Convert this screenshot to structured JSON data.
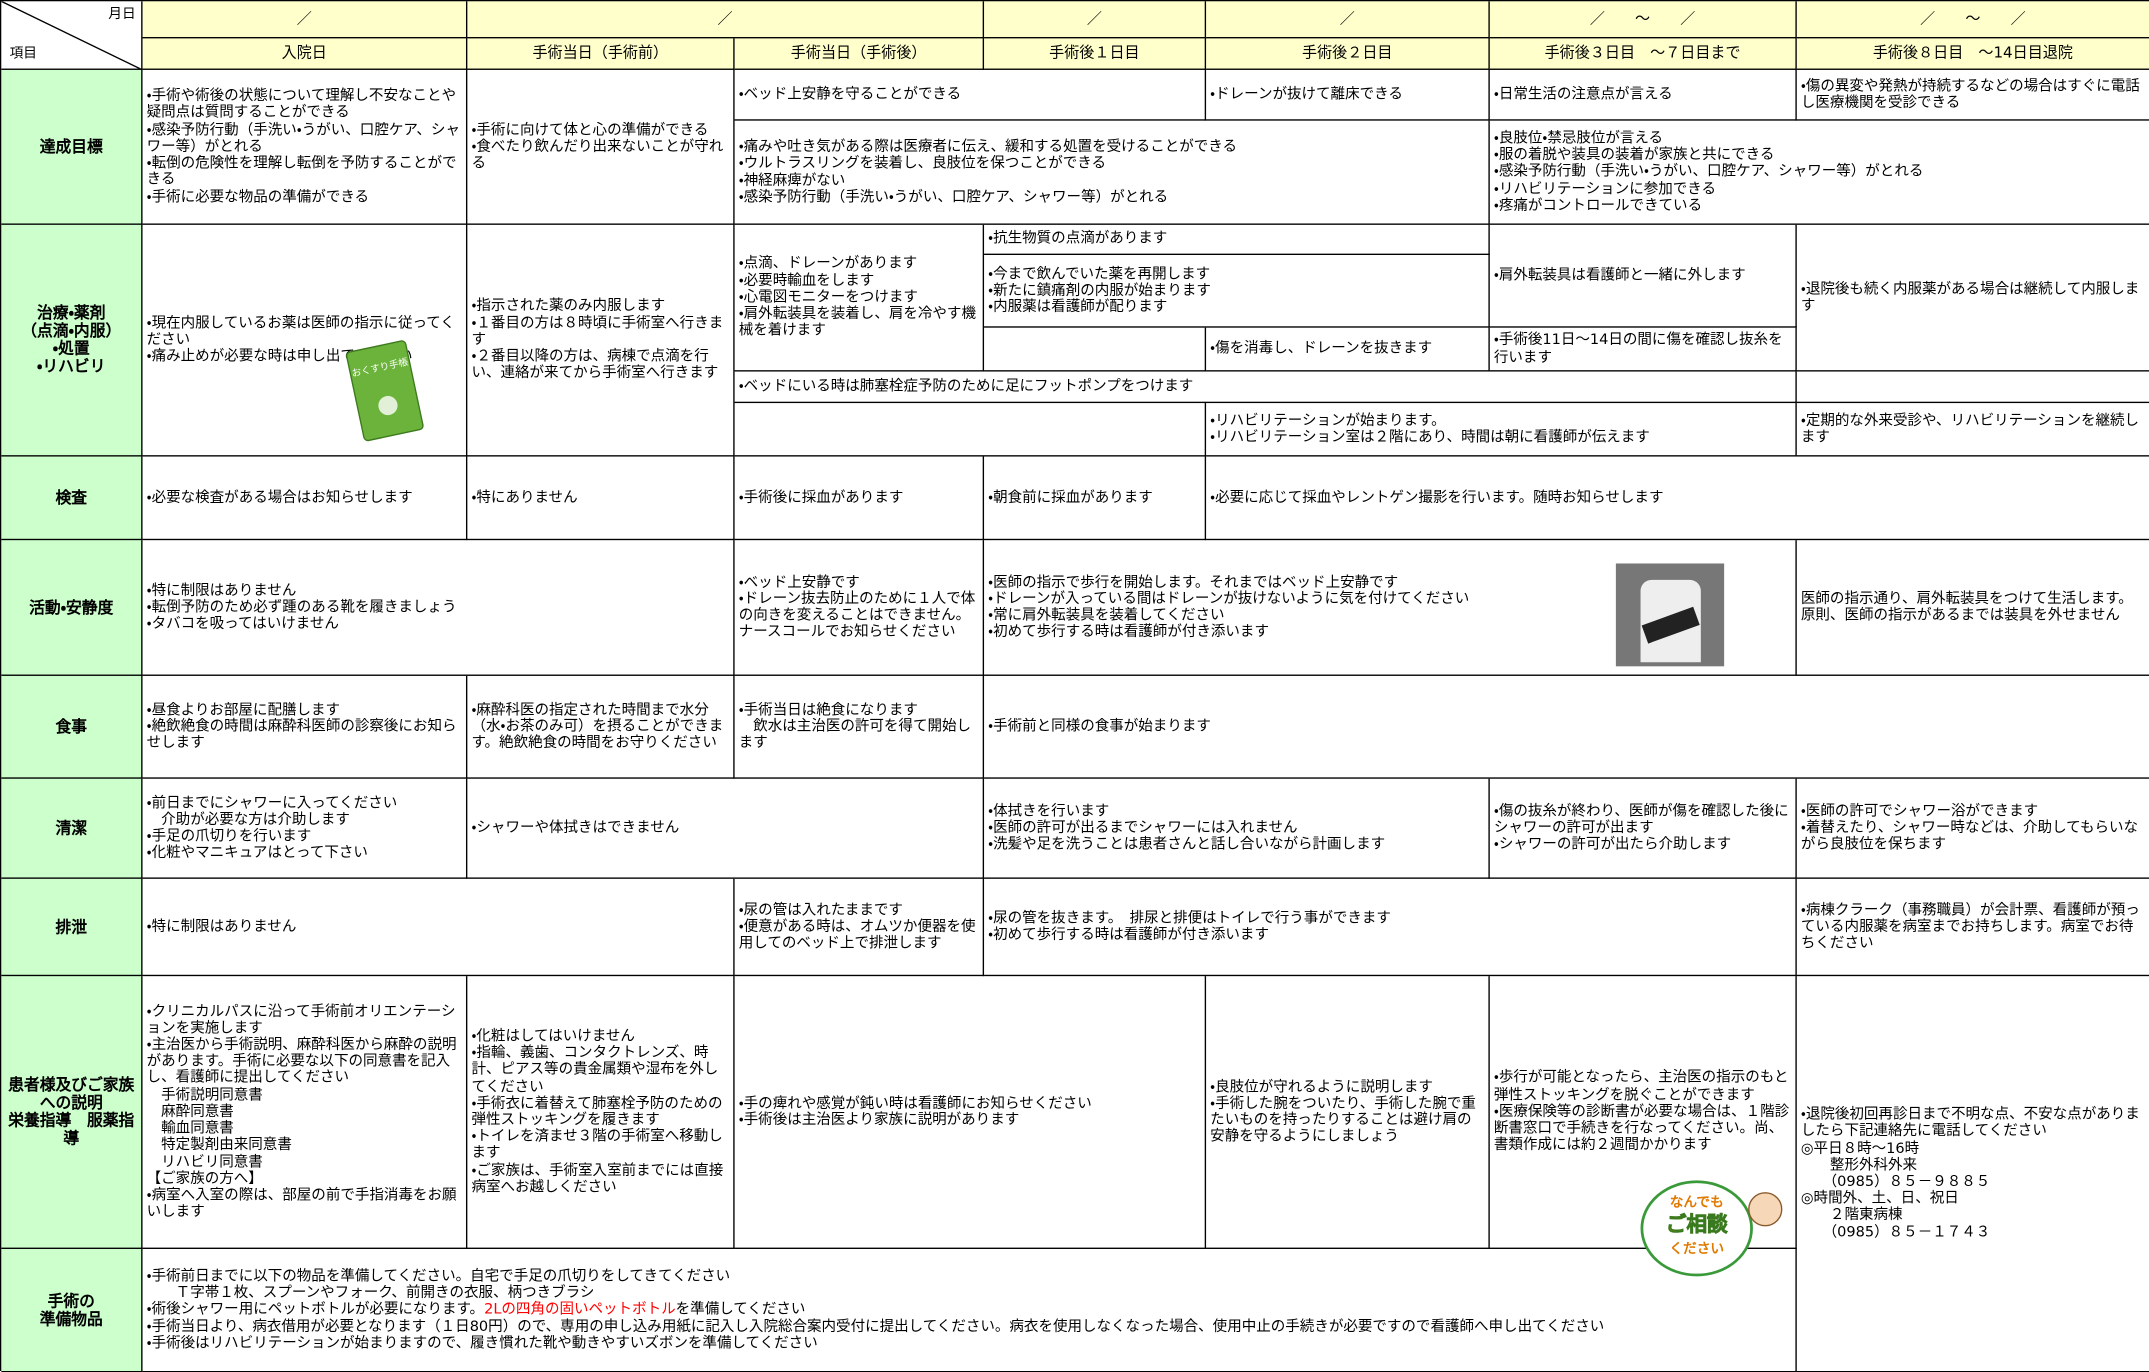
{
  "header": {
    "corner_top": "月日",
    "corner_bottom": "項目",
    "dates": [
      "／",
      "／",
      "／",
      "／",
      "／　　～　　／",
      "／　　～　　／"
    ],
    "labels": [
      "入院日",
      "手術当日（手術前）",
      "手術当日（手術後）",
      "手術後１日目",
      "手術後２日目",
      "手術後３日目　～７日目まで",
      "手術後８日目　～14日目退院"
    ]
  },
  "rows": [
    {
      "label": "達成目標",
      "cells": [
        [
          "・手術や術後の状態について理解し不安なことや疑問点は質問することができる",
          "・感染予防行動（手洗い・うがい、口腔ケア、シャワー等）がとれる",
          "・転倒の危険性を理解し転倒を予防することができる",
          "・手術に必要な物品の準備ができる"
        ],
        [
          "・手術に向けて体と心の準備ができる",
          "・食べたり飲んだり出来ないことが守れる"
        ],
        [
          "・ベッド上安静を守ることができる"
        ],
        [
          "・ドレーンが抜けて離床できる"
        ],
        [
          "・痛みや吐き気がある際は医療者に伝え、緩和する処置を受けることができる",
          "・ウルトラスリングを装着し、良肢位を保つことができる",
          "・神経麻痺がない",
          "・感染予防行動（手洗い・うがい、口腔ケア、シャワー等）がとれる"
        ],
        [
          "・日常生活の注意点が言える"
        ],
        [
          "・傷の異変や発熱が持続するなどの場合はすぐに電話し医療機関を受診できる"
        ],
        [
          "・良肢位・禁忌肢位が言える",
          "・服の着脱や装具の装着が家族と共にできる",
          "・感染予防行動（手洗い・うがい、口腔ケア、シャワー等）がとれる",
          "・リハビリテーションに参加できる",
          "・疼痛がコントロールできている"
        ]
      ]
    },
    {
      "label": "治療・薬剤\n（点滴・内服）\n・処置\n・リハビリ",
      "cells": [
        [
          "・現在内服しているお薬は医師の指示に従ってください",
          "・痛み止めが必要な時は申し出てください"
        ],
        [
          "・指示された薬のみ内服します",
          "・１番目の方は８時頃に手術室へ行きます",
          "・２番目以降の方は、病棟で点滴を行い、連絡が来てから手術室へ行きます"
        ],
        [
          "・点滴、ドレーンがあります",
          "・必要時輸血をします",
          "・心電図モニターをつけます",
          "・肩外転装具を装着し、肩を冷やす機械を着けます"
        ],
        [
          "・抗生物質の点滴があります"
        ],
        [
          "・今まで飲んでいた薬を再開します",
          "・新たに鎮痛剤の内服が始まります",
          "・内服薬は看護師が配ります"
        ],
        [
          "・傷を消毒し、ドレーンを抜きます"
        ],
        [
          "・肩外転装具は看護師と一緒に外します"
        ],
        [
          "・手術後11日～14日の間に傷を確認し抜糸を行います"
        ],
        [
          "・退院後も続く内服薬がある場合は継続して内服します"
        ],
        [
          "・ベッドにいる時は肺塞栓症予防のために足にフットポンプをつけます"
        ],
        [
          "・リハビリテーションが始まります。",
          "・リハビリテーション室は２階にあり、時間は朝に看護師が伝えます"
        ],
        [
          "・定期的な外来受診や、リハビリテーションを継続します"
        ]
      ]
    },
    {
      "label": "検査",
      "cells": [
        [
          "・必要な検査がある場合はお知らせします"
        ],
        [
          "・特にありません"
        ],
        [
          "・手術後に採血があります"
        ],
        [
          "・朝食前に採血があります"
        ],
        [
          "・必要に応じて採血やレントゲン撮影を行います。随時お知らせします"
        ]
      ]
    },
    {
      "label": "活動・安静度",
      "cells": [
        [
          "・特に制限はありません",
          "・転倒予防のため必ず踵のある靴を履きましょう",
          "・タバコを吸ってはいけません"
        ],
        [
          "・ベッド上安静です",
          "・ドレーン抜去防止のために１人で体の向きを変えることはできません。ナースコールでお知らせください"
        ],
        [
          "・医師の指示で歩行を開始します。それまではベッド上安静です",
          "・ドレーンが入っている間はドレーンが抜けないように気を付けてください",
          "・常に肩外転装具を装着してください",
          "・初めて歩行する時は看護師が付き添います"
        ],
        [
          "医師の指示通り、肩外転装具をつけて生活します。原則、医師の指示があるまでは装具を外せません"
        ]
      ]
    },
    {
      "label": "食事",
      "cells": [
        [
          "・昼食よりお部屋に配膳します",
          "・絶飲絶食の時間は麻酔科医師の診察後にお知らせします"
        ],
        [
          "・麻酔科医の指定された時間まで水分（水・お茶のみ可）を摂ることができます。絶飲絶食の時間をお守りください"
        ],
        [
          "・手術当日は絶食になります",
          "　飲水は主治医の許可を得て開始します"
        ],
        [
          "・手術前と同様の食事が始まります"
        ]
      ]
    },
    {
      "label": "清潔",
      "cells": [
        [
          "・前日までにシャワーに入ってください",
          "　介助が必要な方は介助します",
          "・手足の爪切りを行います",
          "・化粧やマニキュアはとって下さい"
        ],
        [
          "・シャワーや体拭きはできません"
        ],
        [
          "・体拭きを行います",
          "・医師の許可が出るまでシャワーには入れません",
          "・洗髪や足を洗うことは患者さんと話し合いながら計画します"
        ],
        [
          "・傷の抜糸が終わり、医師が傷を確認した後にシャワーの許可が出ます",
          "・シャワーの許可が出たら介助します"
        ],
        [
          "・医師の許可でシャワー浴ができます",
          "・着替えたり、シャワー時などは、介助してもらいながら良肢位を保ちます"
        ]
      ]
    },
    {
      "label": "排泄",
      "cells": [
        [
          "・特に制限はありません"
        ],
        [
          "・尿の管は入れたままです",
          "・便意がある時は、オムツか便器を使用してのベッド上で排泄します"
        ],
        [
          "・尿の管を抜きます。　排尿と排便はトイレで行う事ができます",
          "・初めて歩行する時は看護師が付き添います"
        ],
        [
          "・病棟クラーク（事務職員）が会計票、看護師が預っている内服薬を病室までお持ちします。病室でお待ちください"
        ]
      ]
    },
    {
      "label": "患者様及びご家族への説明\n栄養指導　服薬指導",
      "cells": [
        [
          "・クリニカルパスに沿って手術前オリエンテーションを実施します",
          "・主治医から手術説明、麻酔科医から麻酔の説明があります。手術に必要な以下の同意書を記入し、看護師に提出してください",
          "　手術説明同意書",
          "　麻酔同意書",
          "　輸血同意書",
          "　特定製剤由来同意書",
          "　リハビリ同意書",
          "【ご家族の方へ】",
          "・病室へ入室の際は、部屋の前で手指消毒をお願いします"
        ],
        [
          "・化粧はしてはいけません",
          "・指輪、義歯、コンタクトレンズ、時計、ピアス等の貴金属類や湿布を外してください",
          "・手術衣に着替えて肺塞栓予防のための弾性ストッキングを履きます",
          "・トイレを済ませ３階の手術室へ移動します",
          "・ご家族は、手術室入室前までには直接病室へお越しください"
        ],
        [
          "・手の痺れや感覚が鈍い時は看護師にお知らせください",
          "・手術後は主治医より家族に説明があります"
        ],
        [
          "・良肢位が守れるように説明します",
          "・手術した腕をついたり、手術した腕で重たいものを持ったりすることは避け肩の安静を守るようにしましょう"
        ],
        [
          "・歩行が可能となったら、主治医の指示のもと弾性ストッキングを脱ぐことができます",
          "・医療保険等の診断書が必要な場合は、１階診断書窓口で手続きを行なってください。尚、書類作成には約２週間かかります"
        ],
        [
          "・退院後初回再診日まで不明な点、不安な点がありましたら下記連絡先に電話してください",
          "◎平日８時～16時",
          "　　整形外科外来",
          "　　（0985）８５－９８８５",
          "◎時間外、土、日、祝日",
          "　　２階東病棟",
          "　　（0985）８５－１７４３"
        ]
      ]
    },
    {
      "label": "手術の\n準備物品",
      "cells": [
        [
          "・手術前日までに以下の物品を準備してください。自宅で手足の爪切りをしてきてください",
          "　　Ｔ字帯１枚、スプーンやフォーク、前開きの衣服、柄つきブラシ",
          {
            "parts": [
              "・術後シャワー用にペットボトルが必要になります。",
              "2Lの四角の固いペットボトル",
              "を準備してください"
            ],
            "highlight_color": "#ff0000"
          },
          "・手術当日より、病衣借用が必要となります（１日80円）ので、専用の申し込み用紙に記入し入院総合案内受付に提出してください。病衣を使用しなくなった場合、使用中止の手続きが必要ですので看護師へ申し出てください",
          "・手術後はリハビリテーションが始まりますので、履き慣れた靴や動きやすいズボンを準備してください"
        ]
      ]
    }
  ],
  "illustrations": {
    "medicine_book": "おくすり手帳",
    "consult_badge": [
      "なんでも",
      "ご相談",
      "ください"
    ]
  }
}
